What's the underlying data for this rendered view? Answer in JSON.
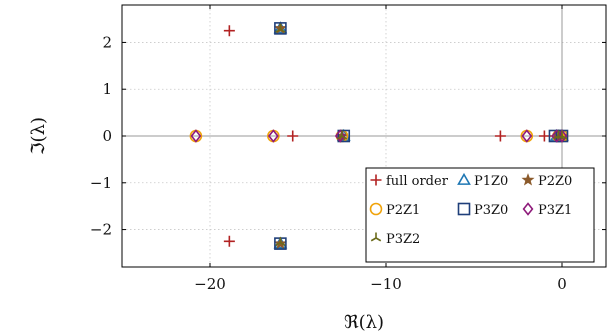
{
  "chart_data": {
    "type": "scatter",
    "title": "",
    "xlabel": "ℜ(λ)",
    "ylabel": "ℑ(λ)",
    "xlim": [
      -25,
      2.5
    ],
    "ylim": [
      -2.8,
      2.8
    ],
    "xticks": [
      -20,
      -10,
      0
    ],
    "xtick_labels": [
      "−20",
      "−10",
      "0"
    ],
    "yticks": [
      -2,
      -1,
      0,
      1,
      2
    ],
    "ytick_labels": [
      "−2",
      "−1",
      "0",
      "1",
      "2"
    ],
    "grid": true,
    "grid_style": "dotted",
    "zero_lines": true,
    "legend_position": "bottom-right",
    "series": [
      {
        "name": "full order",
        "marker": "plus",
        "color": "#b22222",
        "points": [
          [
            -18.9,
            2.25
          ],
          [
            -18.9,
            -2.25
          ],
          [
            -15.3,
            0
          ],
          [
            -3.5,
            0
          ],
          [
            -1.0,
            0
          ],
          [
            -0.4,
            0
          ],
          [
            -0.1,
            0
          ],
          [
            0.0,
            0
          ]
        ]
      },
      {
        "name": "P1Z0",
        "marker": "triangle",
        "color": "#1f77b4",
        "points": [
          [
            -16.0,
            2.3
          ],
          [
            -16.0,
            -2.3
          ],
          [
            -12.4,
            0
          ],
          [
            -0.3,
            0
          ],
          [
            0.0,
            0
          ]
        ]
      },
      {
        "name": "P2Z0",
        "marker": "star",
        "color": "#8b5a2b",
        "points": [
          [
            -16.0,
            2.3
          ],
          [
            -16.0,
            -2.3
          ],
          [
            -12.5,
            0
          ],
          [
            -0.2,
            0
          ],
          [
            0.0,
            0
          ]
        ]
      },
      {
        "name": "P2Z1",
        "marker": "circle",
        "color": "#f0a30a",
        "points": [
          [
            -20.8,
            0
          ],
          [
            -16.4,
            0
          ],
          [
            -12.5,
            0
          ],
          [
            -2.0,
            0
          ],
          [
            -0.2,
            0
          ],
          [
            0.0,
            0
          ]
        ]
      },
      {
        "name": "P3Z0",
        "marker": "square",
        "color": "#1f3f7a",
        "points": [
          [
            -16.0,
            2.3
          ],
          [
            -16.0,
            -2.3
          ],
          [
            -12.4,
            0
          ],
          [
            -0.4,
            0
          ],
          [
            0.0,
            0
          ]
        ]
      },
      {
        "name": "P3Z1",
        "marker": "diamond",
        "color": "#8e1a7a",
        "points": [
          [
            -20.8,
            0
          ],
          [
            -16.4,
            0
          ],
          [
            -12.6,
            0
          ],
          [
            -2.0,
            0
          ],
          [
            -0.3,
            0
          ],
          [
            0.0,
            0
          ]
        ]
      },
      {
        "name": "P3Z2",
        "marker": "tri",
        "color": "#6b6b1a",
        "points": [
          [
            -16.0,
            2.28
          ],
          [
            -16.0,
            -2.28
          ],
          [
            -12.5,
            0
          ],
          [
            -0.2,
            0
          ],
          [
            0.0,
            0
          ]
        ]
      }
    ]
  }
}
